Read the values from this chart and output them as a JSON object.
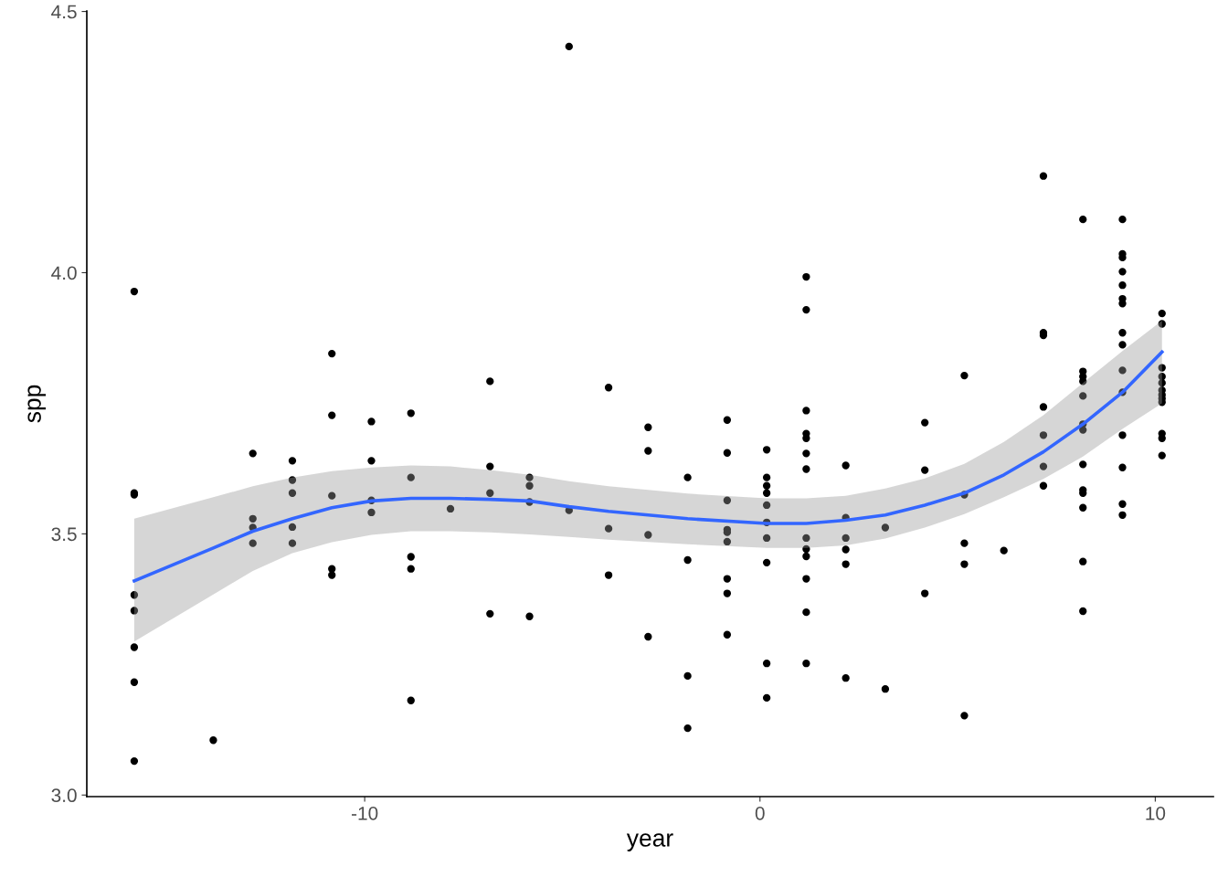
{
  "chart_data": {
    "type": "scatter",
    "xlabel": "year",
    "ylabel": "spp",
    "xlim": [
      -17.03,
      11.47
    ],
    "ylim": [
      2.997,
      4.501
    ],
    "xticks": [
      -10,
      0,
      10
    ],
    "yticks": [
      {
        "value": 3,
        "label": "3.0"
      },
      3.5,
      {
        "value": 4,
        "label": "4.0"
      },
      4.5
    ],
    "grid": false,
    "marker": "circle",
    "series": [
      {
        "color": "#000000",
        "x": [
          -15.83,
          -15.83,
          -15.83,
          -15.83,
          -15.83,
          -15.83,
          -15.83,
          -15.83,
          -13.83,
          -12.83,
          -12.83,
          -12.83,
          -12.83,
          -11.83,
          -11.83,
          -11.83,
          -11.83,
          -11.83,
          -10.83,
          -10.83,
          -10.83,
          -10.83,
          -10.83,
          -9.83,
          -9.83,
          -9.83,
          -9.83,
          -8.83,
          -8.83,
          -8.83,
          -8.83,
          -8.83,
          -7.83,
          -6.83,
          -6.83,
          -6.83,
          -6.83,
          -5.83,
          -5.83,
          -5.83,
          -5.83,
          -4.83,
          -4.83,
          -3.83,
          -3.83,
          -3.83,
          -2.83,
          -2.83,
          -2.83,
          -2.83,
          -1.83,
          -1.83,
          -1.83,
          -1.83,
          -0.83,
          -0.83,
          -0.83,
          -0.83,
          -0.83,
          -0.83,
          -0.83,
          -0.83,
          -0.83,
          0.17,
          0.17,
          0.17,
          0.17,
          0.17,
          0.17,
          0.17,
          0.17,
          0.17,
          0.17,
          1.17,
          1.17,
          1.17,
          1.17,
          1.17,
          1.17,
          1.17,
          1.17,
          1.17,
          1.17,
          1.17,
          1.17,
          1.17,
          2.17,
          2.17,
          2.17,
          2.17,
          2.17,
          2.17,
          3.17,
          3.17,
          4.17,
          4.17,
          4.17,
          5.17,
          5.17,
          5.17,
          5.17,
          5.17,
          6.17,
          7.17,
          7.17,
          7.17,
          7.17,
          7.17,
          7.17,
          7.17,
          8.17,
          8.17,
          8.17,
          8.17,
          8.17,
          8.17,
          8.17,
          8.17,
          8.17,
          8.17,
          8.17,
          8.17,
          8.17,
          9.17,
          9.17,
          9.17,
          9.17,
          9.17,
          9.17,
          9.17,
          9.17,
          9.17,
          9.17,
          9.17,
          9.17,
          9.17,
          9.17,
          9.17,
          10.17,
          10.17,
          10.17,
          10.17,
          10.17,
          10.17,
          10.17,
          10.17,
          10.17,
          10.17,
          10.17,
          10.17
        ],
        "values": [
          3.964,
          3.578,
          3.575,
          3.383,
          3.353,
          3.283,
          3.216,
          3.065,
          3.105,
          3.654,
          3.529,
          3.512,
          3.482,
          3.64,
          3.603,
          3.578,
          3.513,
          3.482,
          3.845,
          3.727,
          3.573,
          3.433,
          3.421,
          3.715,
          3.64,
          3.564,
          3.541,
          3.731,
          3.608,
          3.456,
          3.433,
          3.181,
          3.548,
          3.792,
          3.629,
          3.578,
          3.347,
          3.608,
          3.592,
          3.561,
          3.342,
          4.433,
          3.545,
          3.78,
          3.51,
          3.421,
          3.704,
          3.659,
          3.498,
          3.303,
          3.608,
          3.45,
          3.228,
          3.128,
          3.718,
          3.655,
          3.564,
          3.508,
          3.503,
          3.485,
          3.414,
          3.386,
          3.307,
          3.661,
          3.608,
          3.592,
          3.578,
          3.555,
          3.522,
          3.492,
          3.445,
          3.252,
          3.186,
          3.992,
          3.929,
          3.736,
          3.692,
          3.683,
          3.654,
          3.624,
          3.492,
          3.471,
          3.457,
          3.414,
          3.35,
          3.252,
          3.631,
          3.531,
          3.492,
          3.47,
          3.442,
          3.224,
          3.512,
          3.203,
          3.713,
          3.622,
          3.386,
          3.803,
          3.575,
          3.482,
          3.442,
          3.152,
          3.468,
          4.185,
          3.885,
          3.88,
          3.743,
          3.689,
          3.629,
          3.592,
          4.102,
          3.811,
          3.801,
          3.792,
          3.764,
          3.71,
          3.699,
          3.633,
          3.584,
          3.578,
          3.55,
          3.447,
          3.352,
          4.102,
          4.036,
          4.029,
          4.002,
          3.976,
          3.95,
          3.941,
          3.885,
          3.862,
          3.813,
          3.771,
          3.689,
          3.627,
          3.557,
          3.536,
          3.922,
          3.902,
          3.818,
          3.801,
          3.789,
          3.775,
          3.766,
          3.759,
          3.752,
          3.692,
          3.683,
          3.65
        ]
      },
      {
        "type": "line",
        "color": "#3366ff",
        "marker": "none",
        "line_style": "solid",
        "x": [
          -15.83,
          -13.83,
          -12.83,
          -11.83,
          -10.83,
          -9.83,
          -8.83,
          -7.83,
          -6.83,
          -5.83,
          -4.83,
          -3.83,
          -1.83,
          0.17,
          1.17,
          2.17,
          3.17,
          4.17,
          5.17,
          6.17,
          7.17,
          8.17,
          9.17,
          10.17
        ],
        "values": [
          3.41,
          3.473,
          3.505,
          3.529,
          3.55,
          3.563,
          3.568,
          3.568,
          3.566,
          3.563,
          3.552,
          3.543,
          3.529,
          3.52,
          3.52,
          3.526,
          3.536,
          3.555,
          3.578,
          3.613,
          3.657,
          3.71,
          3.771,
          3.848
        ],
        "upper": [
          3.529,
          3.57,
          3.591,
          3.608,
          3.62,
          3.627,
          3.631,
          3.629,
          3.622,
          3.613,
          3.601,
          3.591,
          3.577,
          3.568,
          3.568,
          3.573,
          3.587,
          3.606,
          3.634,
          3.676,
          3.727,
          3.789,
          3.85,
          3.908
        ],
        "lower": [
          3.294,
          3.384,
          3.429,
          3.463,
          3.484,
          3.498,
          3.505,
          3.505,
          3.503,
          3.499,
          3.494,
          3.489,
          3.48,
          3.473,
          3.473,
          3.478,
          3.491,
          3.512,
          3.538,
          3.57,
          3.605,
          3.648,
          3.701,
          3.75
        ]
      }
    ]
  }
}
